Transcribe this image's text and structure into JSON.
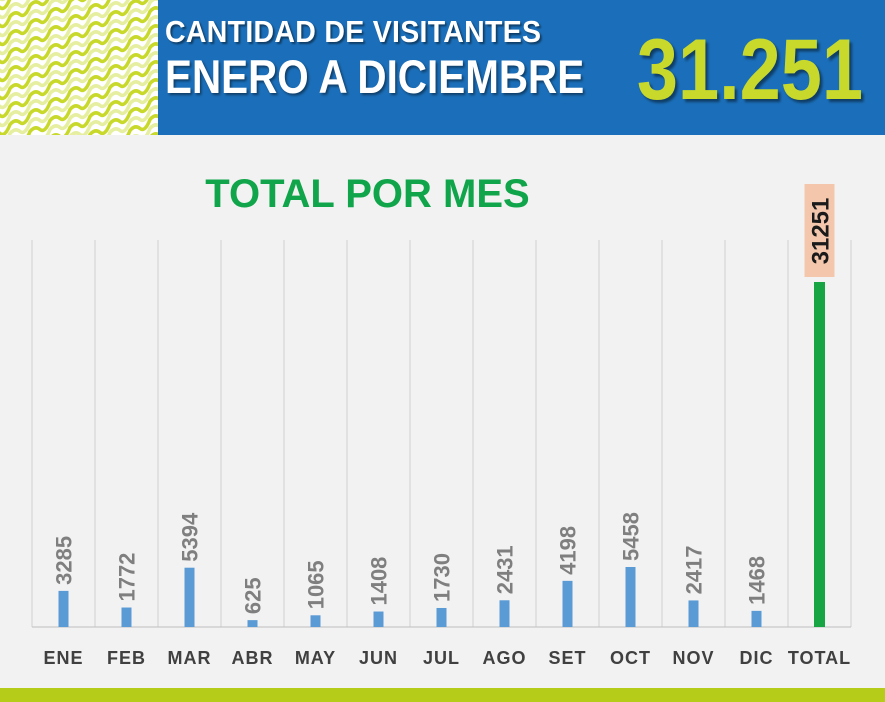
{
  "header": {
    "line1": "CANTIDAD DE VISITANTES",
    "line2": "ENERO A DICIEMBRE",
    "total": "31.251"
  },
  "colors": {
    "header_blue": "#1b6fba",
    "accent_yellow_green": "#c8d92b",
    "title_green": "#10a54a",
    "bar_blue": "#5b9bd5",
    "total_bar_green": "#17a544",
    "total_label_bg": "#f4c7ad",
    "bottom_bar": "#b5cc18"
  },
  "chart_data": {
    "type": "bar",
    "title": "TOTAL POR MES",
    "categories": [
      "ENE",
      "FEB",
      "MAR",
      "ABR",
      "MAY",
      "JUN",
      "JUL",
      "AGO",
      "SET",
      "OCT",
      "NOV",
      "DIC",
      "TOTAL"
    ],
    "values": [
      3285,
      1772,
      5394,
      625,
      1065,
      1408,
      1730,
      2431,
      4198,
      5458,
      2417,
      1468,
      31251
    ],
    "data_labels": [
      "3285",
      "1772",
      "5394",
      "625",
      "1065",
      "1408",
      "1730",
      "2431",
      "4198",
      "5458",
      "2417",
      "1468",
      "31251"
    ],
    "xlabel": "",
    "ylabel": "",
    "ylim": [
      0,
      35000
    ],
    "grid": "vertical",
    "legend": "none"
  }
}
